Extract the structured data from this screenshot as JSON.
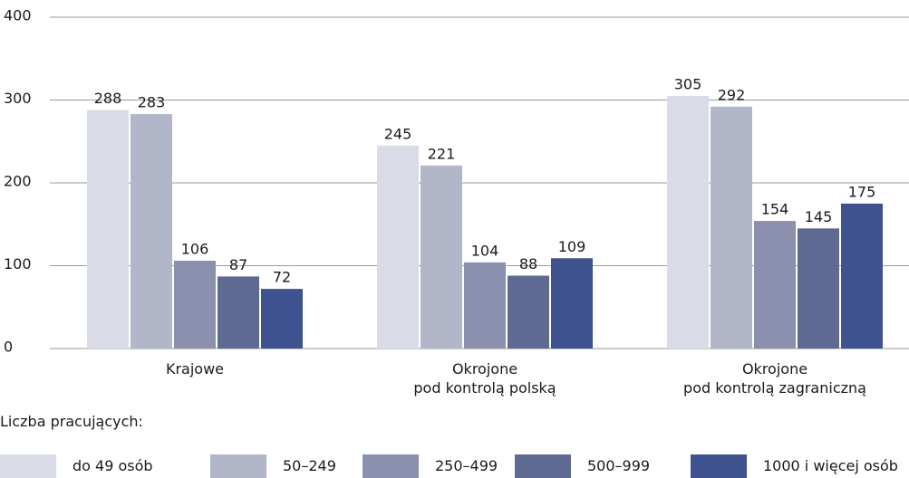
{
  "chart_data": {
    "type": "bar",
    "categories": [
      "Krajowe",
      "Okrojone\npod kontrolą polską",
      "Okrojone\npod kontrolą zagraniczną"
    ],
    "series": [
      {
        "name": "do 49 osób",
        "color": "#d9dce6",
        "values": [
          288,
          245,
          305
        ]
      },
      {
        "name": "50–249",
        "color": "#b2b6c9",
        "values": [
          283,
          221,
          292
        ]
      },
      {
        "name": "250–499",
        "color": "#8a90ad",
        "values": [
          106,
          104,
          154
        ]
      },
      {
        "name": "500–999",
        "color": "#5f6a93",
        "values": [
          87,
          88,
          145
        ]
      },
      {
        "name": "1000 i więcej osób",
        "color": "#3d528f",
        "values": [
          72,
          109,
          175
        ]
      }
    ],
    "legend_title": "Liczba pracujących:",
    "ylim": [
      0,
      400
    ],
    "yticks": [
      0,
      100,
      200,
      300,
      400
    ],
    "grid": true,
    "legend": "bottom"
  }
}
